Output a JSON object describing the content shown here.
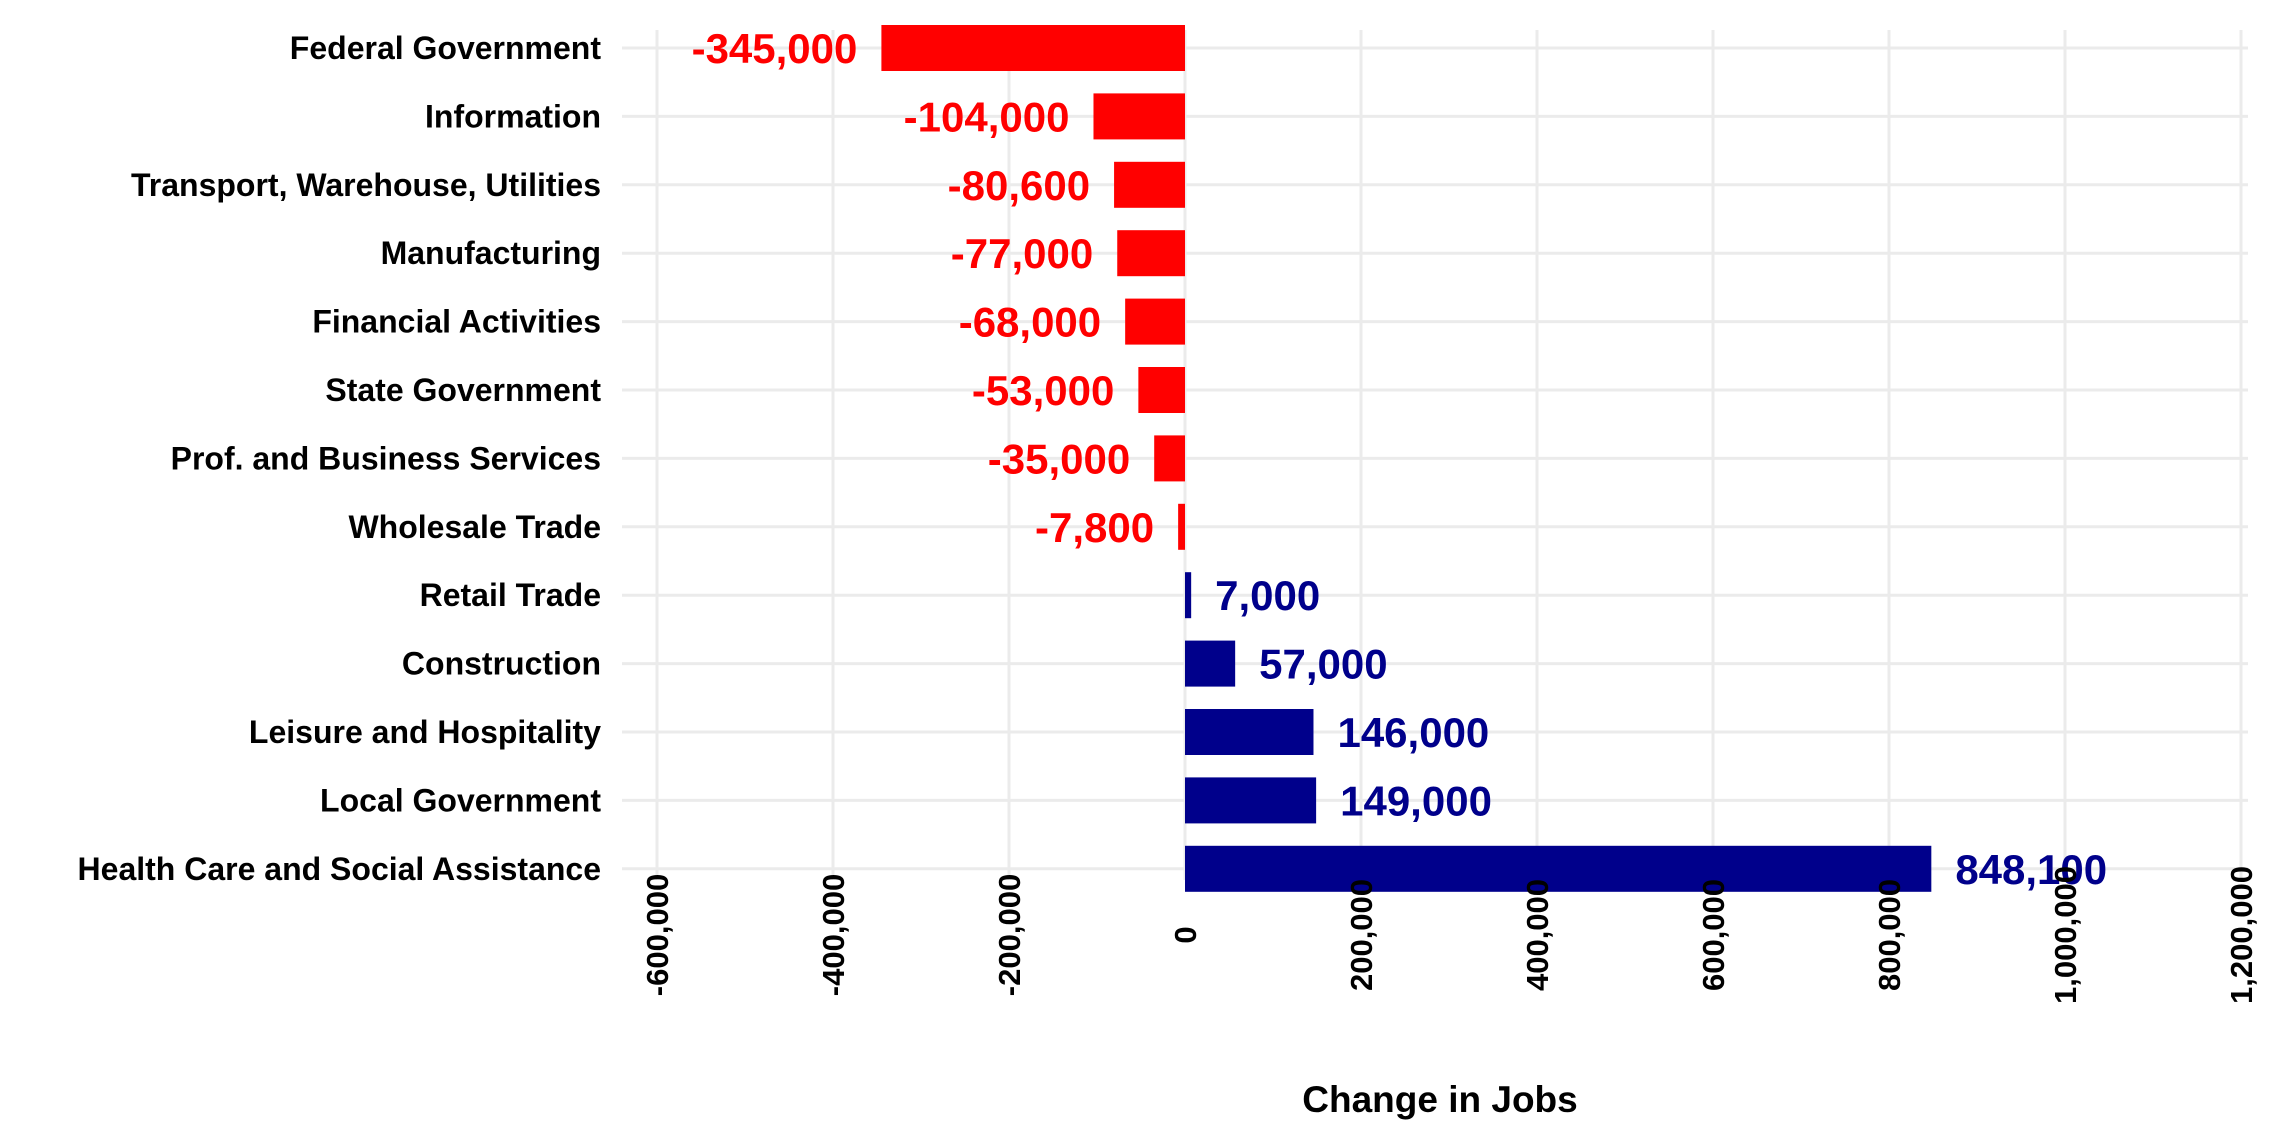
{
  "chart_data": {
    "type": "bar",
    "orientation": "horizontal",
    "categories": [
      "Federal Government",
      "Information",
      "Transport, Warehouse, Utilities",
      "Manufacturing",
      "Financial Activities",
      "State Government",
      "Prof. and Business Services",
      "Wholesale Trade",
      "Retail Trade",
      "Construction",
      "Leisure and Hospitality",
      "Local Government",
      "Health Care and Social Assistance"
    ],
    "values": [
      -345000,
      -104000,
      -80600,
      -77000,
      -68000,
      -53000,
      -35000,
      -7800,
      7000,
      57000,
      146000,
      149000,
      848100
    ],
    "value_labels": [
      "-345,000",
      "-104,000",
      "-80,600",
      "-77,000",
      "-68,000",
      "-53,000",
      "-35,000",
      "-7,800",
      "7,000",
      "57,000",
      "146,000",
      "149,000",
      "848,100"
    ],
    "xlabel": "Change in Jobs",
    "ylabel": "",
    "xlim": [
      -600000,
      1200000
    ],
    "x_ticks": [
      -600000,
      -400000,
      -200000,
      0,
      200000,
      400000,
      600000,
      800000,
      1000000,
      1200000
    ],
    "x_tick_labels": [
      "-600,000",
      "-400,000",
      "-200,000",
      "0",
      "200,000",
      "400,000",
      "600,000",
      "800,000",
      "1,000,000",
      "1,200,000"
    ],
    "grid": true,
    "legend": "none",
    "colors": {
      "negative": "#ff0000",
      "positive": "#00008b"
    }
  }
}
